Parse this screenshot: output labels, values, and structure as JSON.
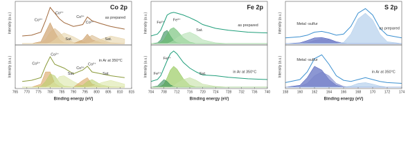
{
  "chart_data": [
    {
      "type": "line",
      "title": "Co 2p",
      "xlabel": "Binding energy (eV)",
      "ylabel": "Intensity (a.u.)",
      "xlim": [
        765,
        815
      ],
      "xticks": [
        765,
        770,
        775,
        780,
        785,
        790,
        795,
        800,
        805,
        810,
        815
      ],
      "ylim": [
        0,
        100
      ],
      "x": [
        768,
        772,
        776,
        778,
        780,
        782,
        784,
        786,
        790,
        794,
        796,
        798,
        802,
        806,
        812
      ],
      "panels": [
        {
          "series": [
            {
              "color": "#c8955a",
              "fill": true,
              "values": [
                0,
                0,
                5,
                30,
                55,
                30,
                10,
                2,
                0,
                0,
                0,
                0,
                0,
                0,
                0
              ]
            },
            {
              "color": "#d9b98a",
              "fill": true,
              "values": [
                0,
                0,
                2,
                10,
                30,
                40,
                30,
                15,
                3,
                0,
                0,
                0,
                0,
                0,
                0
              ]
            },
            {
              "color": "#e6d3a8",
              "fill": true,
              "values": [
                0,
                0,
                0,
                0,
                2,
                10,
                22,
                28,
                18,
                5,
                0,
                0,
                0,
                0,
                0
              ]
            },
            {
              "color": "#c8955a",
              "fill": true,
              "values": [
                0,
                0,
                0,
                0,
                0,
                0,
                0,
                0,
                0,
                10,
                25,
                10,
                2,
                0,
                0
              ]
            },
            {
              "color": "#d9b98a",
              "fill": true,
              "values": [
                0,
                0,
                0,
                0,
                0,
                0,
                0,
                0,
                0,
                5,
                15,
                22,
                10,
                2,
                0
              ]
            },
            {
              "color": "#e6d3a8",
              "fill": true,
              "values": [
                0,
                0,
                0,
                0,
                0,
                0,
                0,
                0,
                0,
                0,
                0,
                3,
                12,
                20,
                12
              ]
            },
            {
              "color": "#a0673a",
              "fill": false,
              "values": [
                20,
                22,
                30,
                60,
                95,
                80,
                65,
                55,
                45,
                50,
                70,
                60,
                52,
                45,
                38
              ]
            }
          ],
          "annotations": [
            {
              "text": "Co³⁺",
              "x": 775,
              "y": 62
            },
            {
              "text": "Co²⁺",
              "x": 784,
              "y": 80
            },
            {
              "text": "Sat.",
              "x": 788,
              "y": 12
            },
            {
              "text": "Co³⁺",
              "x": 793,
              "y": 70
            },
            {
              "text": "Co²⁺",
              "x": 797,
              "y": 55
            },
            {
              "text": "Sat.",
              "x": 805,
              "y": 12
            },
            {
              "text": "as prepared",
              "x": 808,
              "y": 68
            }
          ]
        },
        {
          "series": [
            {
              "color": "#d9a35f",
              "fill": true,
              "values": [
                0,
                0,
                8,
                40,
                40,
                10,
                2,
                0,
                0,
                0,
                0,
                0,
                0,
                0,
                0
              ]
            },
            {
              "color": "#b9cf6e",
              "fill": true,
              "values": [
                0,
                0,
                2,
                15,
                35,
                30,
                12,
                3,
                0,
                0,
                0,
                0,
                0,
                0,
                0
              ]
            },
            {
              "color": "#dbe6a6",
              "fill": true,
              "values": [
                0,
                0,
                0,
                0,
                5,
                15,
                28,
                30,
                15,
                3,
                0,
                0,
                0,
                0,
                0
              ]
            },
            {
              "color": "#d9a35f",
              "fill": true,
              "values": [
                0,
                0,
                0,
                0,
                0,
                0,
                0,
                0,
                0,
                18,
                25,
                8,
                1,
                0,
                0
              ]
            },
            {
              "color": "#b9cf6e",
              "fill": true,
              "values": [
                0,
                0,
                0,
                0,
                0,
                0,
                0,
                0,
                0,
                5,
                15,
                20,
                6,
                1,
                0
              ]
            },
            {
              "color": "#dbe6a6",
              "fill": true,
              "values": [
                0,
                0,
                0,
                0,
                0,
                0,
                0,
                0,
                0,
                0,
                0,
                2,
                12,
                18,
                8
              ]
            },
            {
              "color": "#8a9a3a",
              "fill": false,
              "values": [
                15,
                18,
                25,
                55,
                80,
                60,
                55,
                50,
                35,
                45,
                55,
                40,
                35,
                30,
                25
              ]
            }
          ],
          "annotations": [
            {
              "text": "Co³⁺",
              "x": 774,
              "y": 62
            },
            {
              "text": "Co²⁺",
              "x": 782,
              "y": 85
            },
            {
              "text": "Sat.",
              "x": 789,
              "y": 35
            },
            {
              "text": "Co³⁺",
              "x": 793,
              "y": 50
            },
            {
              "text": "Co²⁺",
              "x": 798,
              "y": 60
            },
            {
              "text": "Sat.",
              "x": 804,
              "y": 35
            },
            {
              "text": "in Ar at 350°C",
              "x": 806,
              "y": 70
            }
          ]
        }
      ]
    },
    {
      "type": "line",
      "title": "Fe 2p",
      "xlabel": "Binding energy (eV)",
      "ylabel": "Intensity (a.u.)",
      "xlim": [
        704,
        740
      ],
      "xticks": [
        704,
        708,
        712,
        716,
        720,
        724,
        728,
        732,
        736,
        740
      ],
      "ylim": [
        0,
        100
      ],
      "x": [
        704,
        706,
        707,
        708,
        709,
        710,
        711,
        712,
        714,
        716,
        718,
        720,
        724,
        728,
        734,
        740
      ],
      "panels": [
        {
          "series": [
            {
              "color": "#2e8b57",
              "fill": true,
              "values": [
                0,
                2,
                10,
                30,
                35,
                20,
                8,
                2,
                0,
                0,
                0,
                0,
                0,
                0,
                0,
                0
              ]
            },
            {
              "color": "#66bb6a",
              "fill": true,
              "values": [
                0,
                0,
                3,
                10,
                25,
                38,
                42,
                35,
                15,
                4,
                0,
                0,
                0,
                0,
                0,
                0
              ]
            },
            {
              "color": "#b2dfb0",
              "fill": true,
              "values": [
                0,
                0,
                0,
                0,
                0,
                3,
                8,
                15,
                25,
                30,
                22,
                10,
                2,
                0,
                0,
                0
              ]
            },
            {
              "color": "#1f9e7a",
              "fill": false,
              "values": [
                20,
                25,
                35,
                55,
                75,
                80,
                82,
                80,
                75,
                68,
                60,
                50,
                40,
                35,
                30,
                28
              ]
            }
          ],
          "annotations": [
            {
              "text": "Fe²⁺",
              "x": 707,
              "y": 55
            },
            {
              "text": "Fe³⁺",
              "x": 712,
              "y": 62
            },
            {
              "text": "Sat.",
              "x": 719,
              "y": 35
            },
            {
              "text": "as prepared",
              "x": 734,
              "y": 48
            }
          ]
        },
        {
          "series": [
            {
              "color": "#8bc34a",
              "fill": true,
              "values": [
                0,
                0,
                2,
                8,
                25,
                45,
                55,
                48,
                22,
                5,
                0,
                0,
                0,
                0,
                0,
                0
              ]
            },
            {
              "color": "#2e8b57",
              "fill": true,
              "values": [
                0,
                3,
                12,
                20,
                15,
                6,
                2,
                0,
                0,
                0,
                0,
                0,
                0,
                0,
                0,
                0
              ]
            },
            {
              "color": "#c5e1a5",
              "fill": true,
              "values": [
                0,
                0,
                0,
                0,
                0,
                0,
                3,
                10,
                20,
                25,
                18,
                8,
                2,
                0,
                0,
                0
              ]
            },
            {
              "color": "#1f9e7a",
              "fill": false,
              "values": [
                15,
                20,
                30,
                50,
                70,
                88,
                95,
                88,
                65,
                50,
                40,
                32,
                30,
                26,
                22,
                20
              ]
            }
          ],
          "annotations": [
            {
              "text": "Fe³⁺",
              "x": 709,
              "y": 75
            },
            {
              "text": "Fe²⁺",
              "x": 706,
              "y": 35
            },
            {
              "text": "Sat.",
              "x": 720,
              "y": 35
            },
            {
              "text": "in Ar at 350°C",
              "x": 733,
              "y": 40
            }
          ]
        }
      ]
    },
    {
      "type": "line",
      "title": "S 2p",
      "xlabel": "Binding energy (eV)",
      "ylabel": "Intensity (a.u.)",
      "xlim": [
        158,
        174
      ],
      "xticks": [
        158,
        160,
        162,
        164,
        166,
        168,
        170,
        172,
        174
      ],
      "ylim": [
        0,
        100
      ],
      "x": [
        158,
        160,
        161,
        162,
        163,
        164,
        165,
        166,
        167,
        168,
        169,
        170,
        171,
        172,
        174
      ],
      "panels": [
        {
          "series": [
            {
              "color": "#3f51b5",
              "fill": true,
              "values": [
                0,
                2,
                8,
                15,
                16,
                12,
                5,
                1,
                0,
                0,
                0,
                0,
                0,
                0,
                0
              ]
            },
            {
              "color": "#7986cb",
              "fill": true,
              "values": [
                0,
                0,
                2,
                8,
                12,
                10,
                5,
                1,
                0,
                0,
                0,
                0,
                0,
                0,
                0
              ]
            },
            {
              "color": "#a8c8ea",
              "fill": true,
              "values": [
                0,
                0,
                0,
                0,
                0,
                0,
                0,
                3,
                25,
                65,
                80,
                62,
                25,
                5,
                0
              ]
            },
            {
              "color": "#3a8fd0",
              "fill": false,
              "values": [
                15,
                18,
                22,
                30,
                32,
                28,
                22,
                25,
                45,
                80,
                92,
                75,
                40,
                22,
                15
              ]
            }
          ],
          "annotations": [
            {
              "text": "Metal -sulfur",
              "x": 161,
              "y": 52
            },
            {
              "text": "as prepared",
              "x": 172.3,
              "y": 40
            }
          ]
        },
        {
          "series": [
            {
              "color": "#3f51b5",
              "fill": true,
              "values": [
                0,
                5,
                25,
                55,
                45,
                20,
                5,
                0,
                0,
                0,
                0,
                0,
                0,
                0,
                0
              ]
            },
            {
              "color": "#7986cb",
              "fill": true,
              "values": [
                0,
                2,
                10,
                30,
                40,
                30,
                10,
                2,
                0,
                0,
                0,
                0,
                0,
                0,
                0
              ]
            },
            {
              "color": "#a8c8ea",
              "fill": true,
              "values": [
                0,
                0,
                0,
                0,
                0,
                0,
                0,
                0,
                3,
                10,
                12,
                8,
                3,
                0,
                0
              ]
            },
            {
              "color": "#3a8fd0",
              "fill": false,
              "values": [
                12,
                20,
                40,
                75,
                85,
                60,
                30,
                18,
                15,
                20,
                25,
                20,
                15,
                12,
                10
              ]
            }
          ],
          "annotations": [
            {
              "text": "Metal -sulfur",
              "x": 161,
              "y": 72
            },
            {
              "text": "in Ar at 350°C",
              "x": 171.5,
              "y": 40
            }
          ]
        }
      ]
    }
  ]
}
